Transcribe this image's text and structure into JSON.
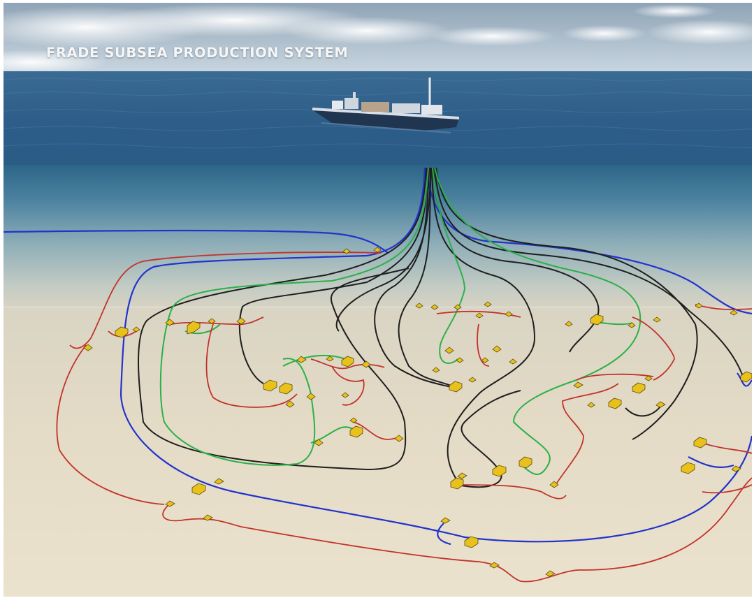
{
  "image": {
    "title": "FRADE SUBSEA PRODUCTION SYSTEM",
    "subject": "FPSO vessel connected by flexible risers to subsea wells, manifolds and flowlines on the seabed",
    "colors": {
      "sky": "#aebfd0",
      "sea_surface": "#2f5f8a",
      "deep_water": "#2f6a8e",
      "seabed": "#e7dcc5",
      "flowline_blue": "#2233cc",
      "flowline_black": "#1e1e1e",
      "flowline_green": "#2bb04a",
      "flowline_red": "#c2322c",
      "equipment_yellow": "#e8c21b"
    }
  }
}
